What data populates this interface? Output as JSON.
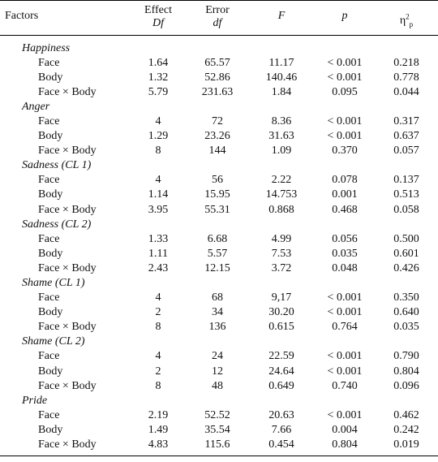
{
  "headers": {
    "factors": "Factors",
    "effect_top": "Effect",
    "effect_bottom": "Df",
    "error_top": "Error",
    "error_bottom": "df",
    "f": "F",
    "p": "p",
    "eta_base": "η",
    "eta_sup": "2",
    "eta_sub": "p"
  },
  "groups": [
    {
      "label": "Happiness",
      "rows": [
        {
          "factor": "Face",
          "effect_df": "1.64",
          "error_df": "65.57",
          "f": "11.17",
          "p": "< 0.001",
          "eta": "0.218"
        },
        {
          "factor": "Body",
          "effect_df": "1.32",
          "error_df": "52.86",
          "f": "140.46",
          "p": "< 0.001",
          "eta": "0.778"
        },
        {
          "factor": "Face × Body",
          "effect_df": "5.79",
          "error_df": "231.63",
          "f": "1.84",
          "p": "0.095",
          "eta": "0.044"
        }
      ]
    },
    {
      "label": "Anger",
      "rows": [
        {
          "factor": "Face",
          "effect_df": "4",
          "error_df": "72",
          "f": "8.36",
          "p": "< 0.001",
          "eta": "0.317"
        },
        {
          "factor": "Body",
          "effect_df": "1.29",
          "error_df": "23.26",
          "f": "31.63",
          "p": "< 0.001",
          "eta": "0.637"
        },
        {
          "factor": "Face × Body",
          "effect_df": "8",
          "error_df": "144",
          "f": "1.09",
          "p": "0.370",
          "eta": "0.057"
        }
      ]
    },
    {
      "label": "Sadness (CL 1)",
      "rows": [
        {
          "factor": "Face",
          "effect_df": "4",
          "error_df": "56",
          "f": "2.22",
          "p": "0.078",
          "eta": "0.137"
        },
        {
          "factor": "Body",
          "effect_df": "1.14",
          "error_df": "15.95",
          "f": "14.753",
          "p": "0.001",
          "eta": "0.513"
        },
        {
          "factor": "Face × Body",
          "effect_df": "3.95",
          "error_df": "55.31",
          "f": "0.868",
          "p": "0.468",
          "eta": "0.058"
        }
      ]
    },
    {
      "label": "Sadness (CL 2)",
      "rows": [
        {
          "factor": "Face",
          "effect_df": "1.33",
          "error_df": "6.68",
          "f": "4.99",
          "p": "0.056",
          "eta": "0.500"
        },
        {
          "factor": "Body",
          "effect_df": "1.11",
          "error_df": "5.57",
          "f": "7.53",
          "p": "0.035",
          "eta": "0.601"
        },
        {
          "factor": "Face × Body",
          "effect_df": "2.43",
          "error_df": "12.15",
          "f": "3.72",
          "p": "0.048",
          "eta": "0.426"
        }
      ]
    },
    {
      "label": "Shame (CL 1)",
      "rows": [
        {
          "factor": "Face",
          "effect_df": "4",
          "error_df": "68",
          "f": "9,17",
          "p": "< 0.001",
          "eta": "0.350"
        },
        {
          "factor": "Body",
          "effect_df": "2",
          "error_df": "34",
          "f": "30.20",
          "p": "< 0.001",
          "eta": "0.640"
        },
        {
          "factor": "Face × Body",
          "effect_df": "8",
          "error_df": "136",
          "f": "0.615",
          "p": "0.764",
          "eta": "0.035"
        }
      ]
    },
    {
      "label": "Shame (CL 2)",
      "rows": [
        {
          "factor": "Face",
          "effect_df": "4",
          "error_df": "24",
          "f": "22.59",
          "p": "< 0.001",
          "eta": "0.790"
        },
        {
          "factor": "Body",
          "effect_df": "2",
          "error_df": "12",
          "f": "24.64",
          "p": "< 0.001",
          "eta": "0.804"
        },
        {
          "factor": "Face × Body",
          "effect_df": "8",
          "error_df": "48",
          "f": "0.649",
          "p": "0.740",
          "eta": "0.096"
        }
      ]
    },
    {
      "label": "Pride",
      "rows": [
        {
          "factor": "Face",
          "effect_df": "2.19",
          "error_df": "52.52",
          "f": "20.63",
          "p": "< 0.001",
          "eta": "0.462"
        },
        {
          "factor": "Body",
          "effect_df": "1.49",
          "error_df": "35.54",
          "f": "7.66",
          "p": "0.004",
          "eta": "0.242"
        },
        {
          "factor": "Face × Body",
          "effect_df": "4.83",
          "error_df": "115.6",
          "f": "0.454",
          "p": "0.804",
          "eta": "0.019"
        }
      ]
    }
  ]
}
